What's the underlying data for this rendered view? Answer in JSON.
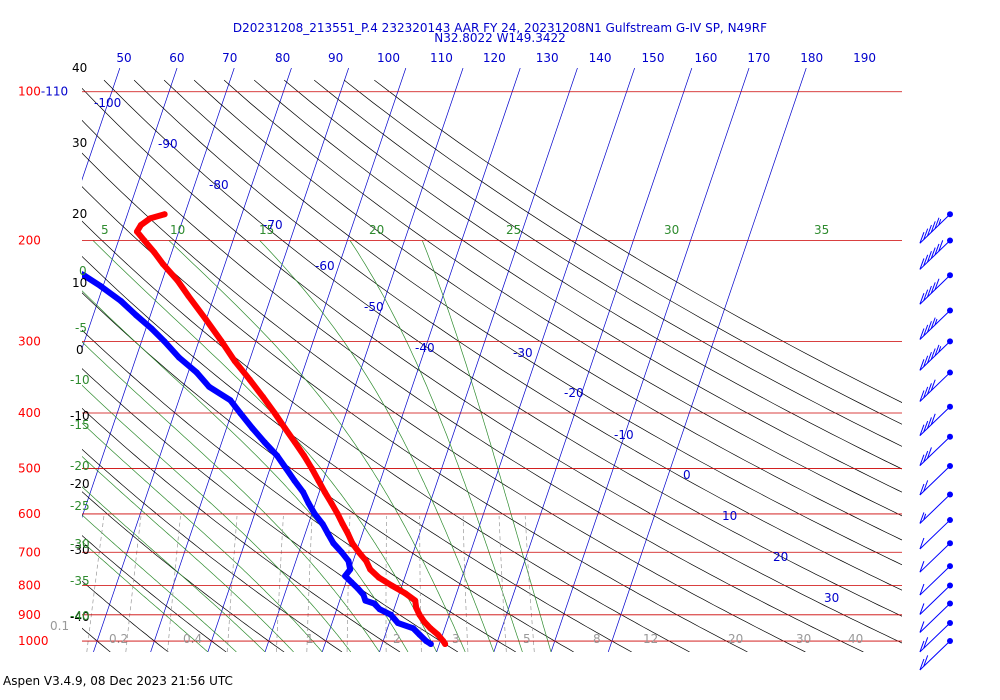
{
  "header": {
    "title_line1": "D20231208_213551_P.4 232320143 AAR FY 24, 20231208N1 Gulfstream G-IV SP, N49RF",
    "title_line2": "N32.8022 W149.3422"
  },
  "footer": {
    "version_text": "Aspen V3.4.9, 08 Dec 2023  21:56 UTC"
  },
  "colors": {
    "temperature": "#ff0000",
    "dewpoint": "#0000ff",
    "isobar": "#cc0000",
    "isotherm": "#0000cc",
    "dry_adiabat": "#000000",
    "moist_adiabat": "#2e8b2e",
    "mixing_ratio": "#999999"
  },
  "chart_data": {
    "type": "line",
    "chart_kind": "skew-T log-P diagram",
    "y_scale": "log",
    "ylim": [
      1000,
      100
    ],
    "pressure_labels": [
      "100-110",
      "200",
      "300",
      "400",
      "500",
      "600",
      "700",
      "800",
      "900",
      "1000"
    ],
    "pressure_levels": [
      110,
      200,
      300,
      400,
      500,
      600,
      700,
      800,
      900,
      1000
    ],
    "top_scale_labels": [
      "50",
      "60",
      "70",
      "80",
      "90",
      "100",
      "110",
      "120",
      "130",
      "140",
      "150",
      "160",
      "170",
      "180",
      "190"
    ],
    "height_labels": [
      "40",
      "30",
      "20",
      "10",
      "0",
      "-10",
      "-20",
      "-30",
      "-40"
    ],
    "theta_e_labels": [
      "5",
      "10",
      "15",
      "20",
      "25",
      "30",
      "35"
    ],
    "moisture_scale_labels": [
      "0",
      "-5",
      "-10",
      "-15",
      "-20",
      "-25",
      "-30",
      "-35",
      "-40"
    ],
    "isotherm_labels": [
      "-100",
      "-90",
      "-80",
      "-70",
      "-60",
      "-50",
      "-40",
      "-30",
      "-20",
      "-10",
      "0",
      "10",
      "20",
      "30"
    ],
    "isotherm_values": [
      -100,
      -90,
      -80,
      -70,
      -60,
      -50,
      -40,
      -30,
      -20,
      -10,
      0,
      10,
      20,
      30
    ],
    "mixing_ratio_labels": [
      "0.1",
      "0.2",
      "0.4",
      "1",
      "2",
      "3",
      "5",
      "8",
      "12",
      "20",
      "30",
      "40"
    ],
    "mixing_ratio_values": [
      0.1,
      0.2,
      0.4,
      1,
      2,
      3,
      5,
      8,
      12,
      20,
      30,
      40
    ],
    "series": [
      {
        "values": [
          [
            1012,
            21.0
          ],
          [
            1000,
            20.5
          ],
          [
            975,
            19.2
          ],
          [
            950,
            17.5
          ],
          [
            925,
            16.0
          ],
          [
            900,
            14.8
          ],
          [
            875,
            13.8
          ],
          [
            850,
            13.2
          ],
          [
            825,
            11.0
          ],
          [
            800,
            8.2
          ],
          [
            775,
            5.5
          ],
          [
            750,
            3.5
          ],
          [
            725,
            2.3
          ],
          [
            700,
            0.5
          ],
          [
            675,
            -1.2
          ],
          [
            650,
            -2.5
          ],
          [
            625,
            -4.0
          ],
          [
            600,
            -5.5
          ],
          [
            575,
            -7.2
          ],
          [
            550,
            -9.0
          ],
          [
            525,
            -10.8
          ],
          [
            500,
            -12.7
          ],
          [
            475,
            -14.8
          ],
          [
            450,
            -17.2
          ],
          [
            425,
            -19.8
          ],
          [
            400,
            -22.5
          ],
          [
            375,
            -25.5
          ],
          [
            350,
            -28.8
          ],
          [
            325,
            -32.5
          ],
          [
            300,
            -36.0
          ],
          [
            275,
            -40.0
          ],
          [
            250,
            -44.5
          ],
          [
            235,
            -47.3
          ],
          [
            220,
            -50.8
          ],
          [
            210,
            -53.0
          ],
          [
            200,
            -55.5
          ],
          [
            193,
            -57.3
          ],
          [
            188,
            -57.0
          ],
          [
            183,
            -55.8
          ],
          [
            180,
            -53.5
          ]
        ]
      },
      {
        "values": [
          [
            1012,
            18.5
          ],
          [
            1000,
            17.5
          ],
          [
            975,
            16.0
          ],
          [
            950,
            14.5
          ],
          [
            930,
            11.5
          ],
          [
            900,
            9.8
          ],
          [
            880,
            7.5
          ],
          [
            860,
            6.2
          ],
          [
            850,
            4.5
          ],
          [
            830,
            3.8
          ],
          [
            810,
            2.5
          ],
          [
            790,
            1.0
          ],
          [
            770,
            -0.5
          ],
          [
            750,
            0.0
          ],
          [
            725,
            -0.8
          ],
          [
            700,
            -2.5
          ],
          [
            675,
            -4.5
          ],
          [
            650,
            -6.0
          ],
          [
            625,
            -7.5
          ],
          [
            600,
            -9.5
          ],
          [
            575,
            -11.2
          ],
          [
            550,
            -12.8
          ],
          [
            525,
            -15.0
          ],
          [
            500,
            -17.2
          ],
          [
            475,
            -19.5
          ],
          [
            450,
            -22.5
          ],
          [
            425,
            -25.5
          ],
          [
            400,
            -28.5
          ],
          [
            380,
            -31.0
          ],
          [
            360,
            -35.5
          ],
          [
            340,
            -38.5
          ],
          [
            320,
            -42.5
          ],
          [
            300,
            -46.0
          ],
          [
            285,
            -49.0
          ],
          [
            270,
            -52.5
          ],
          [
            255,
            -56.0
          ],
          [
            240,
            -60.5
          ],
          [
            230,
            -64.0
          ],
          [
            222,
            -67.5
          ]
        ]
      }
    ],
    "wind_barbs": [
      {
        "pressure": 180,
        "speed_kt": 55
      },
      {
        "pressure": 200,
        "speed_kt": 60
      },
      {
        "pressure": 230,
        "speed_kt": 50
      },
      {
        "pressure": 265,
        "speed_kt": 45
      },
      {
        "pressure": 300,
        "speed_kt": 55
      },
      {
        "pressure": 340,
        "speed_kt": 40
      },
      {
        "pressure": 390,
        "speed_kt": 40
      },
      {
        "pressure": 440,
        "speed_kt": 30
      },
      {
        "pressure": 495,
        "speed_kt": 20
      },
      {
        "pressure": 555,
        "speed_kt": 15
      },
      {
        "pressure": 615,
        "speed_kt": 10
      },
      {
        "pressure": 675,
        "speed_kt": 10
      },
      {
        "pressure": 740,
        "speed_kt": 10
      },
      {
        "pressure": 800,
        "speed_kt": 10
      },
      {
        "pressure": 860,
        "speed_kt": 10
      },
      {
        "pressure": 930,
        "speed_kt": 20
      },
      {
        "pressure": 1000,
        "speed_kt": 20
      }
    ]
  }
}
